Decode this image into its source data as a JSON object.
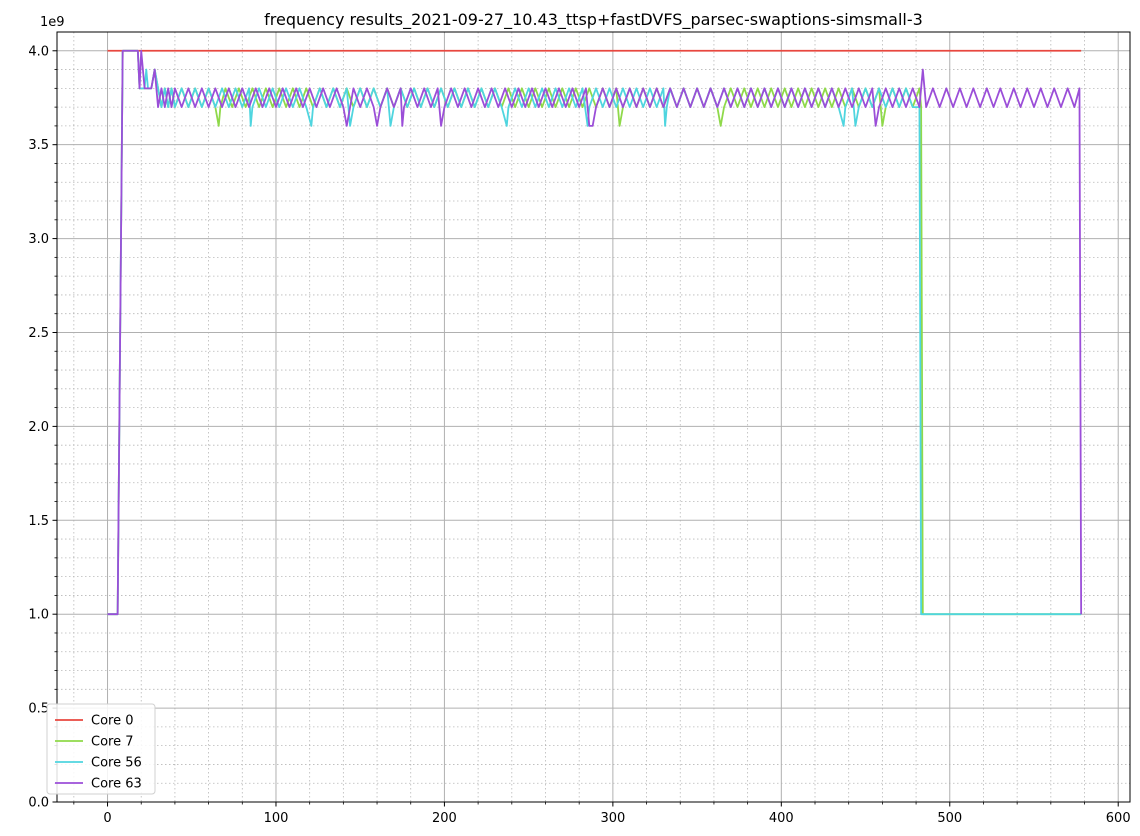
{
  "chart_data": {
    "type": "line",
    "title": "frequency results_2021-09-27_10.43_ttsp+fastDVFS_parsec-swaptions-simsmall-3",
    "xlabel": "",
    "ylabel": "",
    "y_scale_label": "1e9",
    "xlim": [
      -30,
      607
    ],
    "ylim": [
      0,
      4.1
    ],
    "x_ticks": [
      0,
      100,
      200,
      300,
      400,
      500,
      600
    ],
    "x_tick_labels": [
      "0",
      "100",
      "200",
      "300",
      "400",
      "500",
      "600"
    ],
    "y_ticks": [
      0,
      0.5,
      1.0,
      1.5,
      2.0,
      2.5,
      3.0,
      3.5,
      4.0
    ],
    "y_tick_labels": [
      "0.0",
      "0.5",
      "1.0",
      "1.5",
      "2.0",
      "2.5",
      "3.0",
      "3.5",
      "4.0"
    ],
    "grid": true,
    "minor_grid": true,
    "legend_position": "bottom-left",
    "series": [
      {
        "name": "Core 0",
        "color": "#e8473f",
        "x": [
          0,
          578
        ],
        "y": [
          4.0,
          4.0
        ]
      },
      {
        "name": "Core 7",
        "color": "#8fd94a",
        "x": [
          0,
          6,
          9,
          18,
          19,
          20,
          22,
          26,
          28,
          30,
          32,
          34,
          36,
          38,
          40,
          44,
          48,
          52,
          56,
          60,
          64,
          66,
          67,
          70,
          74,
          78,
          82,
          86,
          90,
          94,
          98,
          102,
          106,
          110,
          114,
          118,
          122,
          126,
          130,
          134,
          138,
          142,
          146,
          150,
          154,
          158,
          162,
          166,
          170,
          174,
          178,
          182,
          186,
          190,
          194,
          198,
          202,
          206,
          210,
          214,
          218,
          222,
          226,
          230,
          234,
          238,
          242,
          246,
          250,
          254,
          258,
          262,
          266,
          270,
          274,
          278,
          282,
          286,
          290,
          294,
          298,
          302,
          304,
          306,
          310,
          314,
          318,
          322,
          326,
          330,
          334,
          338,
          342,
          346,
          350,
          354,
          358,
          362,
          364,
          366,
          370,
          374,
          378,
          382,
          386,
          390,
          394,
          398,
          402,
          406,
          410,
          414,
          418,
          422,
          426,
          430,
          434,
          438,
          442,
          446,
          450,
          454,
          458,
          460,
          462,
          466,
          470,
          474,
          478,
          482,
          483,
          484,
          578
        ],
        "y": [
          1.0,
          1.0,
          4.0,
          4.0,
          3.8,
          3.8,
          3.8,
          3.8,
          3.9,
          3.8,
          3.7,
          3.8,
          3.7,
          3.8,
          3.7,
          3.8,
          3.7,
          3.8,
          3.7,
          3.8,
          3.7,
          3.6,
          3.7,
          3.8,
          3.7,
          3.8,
          3.7,
          3.8,
          3.7,
          3.8,
          3.7,
          3.8,
          3.7,
          3.8,
          3.7,
          3.8,
          3.7,
          3.8,
          3.7,
          3.8,
          3.7,
          3.8,
          3.7,
          3.8,
          3.7,
          3.8,
          3.7,
          3.8,
          3.7,
          3.8,
          3.7,
          3.8,
          3.7,
          3.8,
          3.7,
          3.8,
          3.7,
          3.8,
          3.7,
          3.8,
          3.7,
          3.8,
          3.7,
          3.8,
          3.7,
          3.8,
          3.7,
          3.8,
          3.7,
          3.8,
          3.7,
          3.8,
          3.7,
          3.8,
          3.7,
          3.8,
          3.7,
          3.8,
          3.7,
          3.8,
          3.7,
          3.8,
          3.6,
          3.7,
          3.8,
          3.7,
          3.8,
          3.7,
          3.8,
          3.7,
          3.8,
          3.7,
          3.8,
          3.7,
          3.8,
          3.7,
          3.8,
          3.7,
          3.6,
          3.7,
          3.8,
          3.7,
          3.8,
          3.7,
          3.8,
          3.7,
          3.8,
          3.7,
          3.8,
          3.7,
          3.8,
          3.7,
          3.8,
          3.7,
          3.8,
          3.7,
          3.8,
          3.7,
          3.8,
          3.7,
          3.8,
          3.7,
          3.8,
          3.6,
          3.7,
          3.8,
          3.7,
          3.8,
          3.7,
          3.8,
          3.7,
          1.0,
          1.0
        ]
      },
      {
        "name": "Core 56",
        "color": "#4fd5df",
        "x": [
          0,
          6,
          9,
          18,
          19,
          20,
          22,
          23,
          24,
          26,
          28,
          30,
          32,
          34,
          36,
          38,
          40,
          44,
          48,
          52,
          56,
          60,
          64,
          68,
          72,
          76,
          80,
          84,
          85,
          86,
          90,
          94,
          98,
          102,
          106,
          110,
          114,
          118,
          121,
          122,
          126,
          130,
          134,
          138,
          142,
          144,
          146,
          150,
          154,
          158,
          162,
          166,
          168,
          170,
          174,
          178,
          182,
          186,
          190,
          194,
          198,
          202,
          206,
          210,
          214,
          218,
          222,
          226,
          230,
          234,
          237,
          238,
          242,
          246,
          250,
          254,
          258,
          262,
          266,
          270,
          274,
          278,
          282,
          285,
          286,
          290,
          294,
          298,
          302,
          306,
          310,
          314,
          318,
          322,
          326,
          330,
          331,
          332,
          334,
          338,
          342,
          346,
          350,
          354,
          358,
          362,
          366,
          370,
          374,
          378,
          382,
          386,
          390,
          394,
          398,
          402,
          406,
          410,
          414,
          418,
          422,
          426,
          430,
          434,
          437,
          438,
          442,
          444,
          446,
          450,
          454,
          458,
          462,
          466,
          470,
          474,
          478,
          482,
          483,
          484,
          578
        ],
        "y": [
          1.0,
          1.0,
          4.0,
          4.0,
          3.8,
          3.8,
          3.8,
          3.9,
          3.8,
          3.8,
          3.9,
          3.8,
          3.7,
          3.8,
          3.7,
          3.8,
          3.7,
          3.8,
          3.7,
          3.8,
          3.7,
          3.8,
          3.7,
          3.8,
          3.7,
          3.8,
          3.7,
          3.8,
          3.6,
          3.7,
          3.8,
          3.7,
          3.8,
          3.7,
          3.8,
          3.7,
          3.8,
          3.7,
          3.6,
          3.7,
          3.8,
          3.7,
          3.8,
          3.7,
          3.8,
          3.6,
          3.7,
          3.8,
          3.7,
          3.8,
          3.7,
          3.8,
          3.6,
          3.7,
          3.8,
          3.7,
          3.8,
          3.7,
          3.8,
          3.7,
          3.8,
          3.7,
          3.8,
          3.7,
          3.8,
          3.7,
          3.8,
          3.7,
          3.8,
          3.7,
          3.6,
          3.7,
          3.8,
          3.7,
          3.8,
          3.7,
          3.8,
          3.7,
          3.8,
          3.7,
          3.8,
          3.7,
          3.8,
          3.6,
          3.7,
          3.8,
          3.7,
          3.8,
          3.7,
          3.8,
          3.7,
          3.8,
          3.7,
          3.8,
          3.7,
          3.8,
          3.6,
          3.7,
          3.8,
          3.7,
          3.8,
          3.7,
          3.8,
          3.7,
          3.8,
          3.7,
          3.8,
          3.7,
          3.8,
          3.7,
          3.8,
          3.7,
          3.8,
          3.7,
          3.8,
          3.7,
          3.8,
          3.7,
          3.8,
          3.7,
          3.8,
          3.7,
          3.8,
          3.7,
          3.6,
          3.7,
          3.8,
          3.6,
          3.7,
          3.8,
          3.7,
          3.8,
          3.7,
          3.8,
          3.7,
          3.8,
          3.7,
          3.7,
          1.0,
          1.0,
          1.0
        ]
      },
      {
        "name": "Core 63",
        "color": "#9b4ed8",
        "x": [
          0,
          6,
          9,
          18,
          19,
          20,
          22,
          26,
          28,
          30,
          32,
          34,
          36,
          38,
          40,
          44,
          48,
          52,
          56,
          60,
          64,
          68,
          72,
          76,
          80,
          84,
          88,
          92,
          96,
          100,
          104,
          108,
          112,
          116,
          120,
          124,
          128,
          132,
          136,
          140,
          142,
          144,
          146,
          150,
          154,
          158,
          160,
          162,
          166,
          170,
          174,
          175,
          176,
          180,
          184,
          188,
          192,
          196,
          198,
          200,
          204,
          208,
          212,
          216,
          220,
          224,
          228,
          232,
          236,
          240,
          244,
          248,
          252,
          256,
          260,
          264,
          268,
          272,
          276,
          280,
          284,
          286,
          288,
          290,
          294,
          298,
          302,
          306,
          310,
          314,
          318,
          322,
          326,
          330,
          334,
          338,
          342,
          346,
          350,
          354,
          358,
          362,
          366,
          370,
          374,
          378,
          382,
          386,
          390,
          394,
          398,
          402,
          406,
          410,
          414,
          418,
          422,
          426,
          430,
          434,
          438,
          442,
          446,
          450,
          454,
          456,
          458,
          462,
          466,
          470,
          474,
          478,
          482,
          484,
          486,
          490,
          494,
          498,
          502,
          506,
          510,
          514,
          518,
          522,
          526,
          530,
          534,
          538,
          542,
          546,
          550,
          554,
          558,
          562,
          566,
          570,
          574,
          577,
          578
        ],
        "y": [
          1.0,
          1.0,
          4.0,
          4.0,
          3.8,
          4.0,
          3.8,
          3.8,
          3.9,
          3.7,
          3.8,
          3.7,
          3.8,
          3.7,
          3.8,
          3.7,
          3.8,
          3.7,
          3.8,
          3.7,
          3.8,
          3.7,
          3.8,
          3.7,
          3.8,
          3.7,
          3.8,
          3.7,
          3.8,
          3.7,
          3.8,
          3.7,
          3.8,
          3.7,
          3.8,
          3.7,
          3.8,
          3.7,
          3.8,
          3.7,
          3.6,
          3.7,
          3.8,
          3.7,
          3.8,
          3.7,
          3.6,
          3.7,
          3.8,
          3.7,
          3.8,
          3.6,
          3.7,
          3.8,
          3.7,
          3.8,
          3.7,
          3.8,
          3.6,
          3.7,
          3.8,
          3.7,
          3.8,
          3.7,
          3.8,
          3.7,
          3.8,
          3.7,
          3.8,
          3.7,
          3.8,
          3.7,
          3.8,
          3.7,
          3.8,
          3.7,
          3.8,
          3.7,
          3.8,
          3.7,
          3.8,
          3.6,
          3.6,
          3.7,
          3.8,
          3.7,
          3.8,
          3.7,
          3.8,
          3.7,
          3.8,
          3.7,
          3.8,
          3.7,
          3.8,
          3.7,
          3.8,
          3.7,
          3.8,
          3.7,
          3.8,
          3.7,
          3.8,
          3.7,
          3.8,
          3.7,
          3.8,
          3.7,
          3.8,
          3.7,
          3.8,
          3.7,
          3.8,
          3.7,
          3.8,
          3.7,
          3.8,
          3.7,
          3.8,
          3.7,
          3.8,
          3.7,
          3.8,
          3.7,
          3.8,
          3.6,
          3.7,
          3.8,
          3.7,
          3.8,
          3.7,
          3.8,
          3.7,
          3.9,
          3.7,
          3.8,
          3.7,
          3.8,
          3.7,
          3.8,
          3.7,
          3.8,
          3.7,
          3.8,
          3.7,
          3.8,
          3.7,
          3.8,
          3.7,
          3.8,
          3.7,
          3.8,
          3.7,
          3.8,
          3.7,
          3.8,
          3.7,
          3.8,
          1.0
        ]
      }
    ]
  }
}
